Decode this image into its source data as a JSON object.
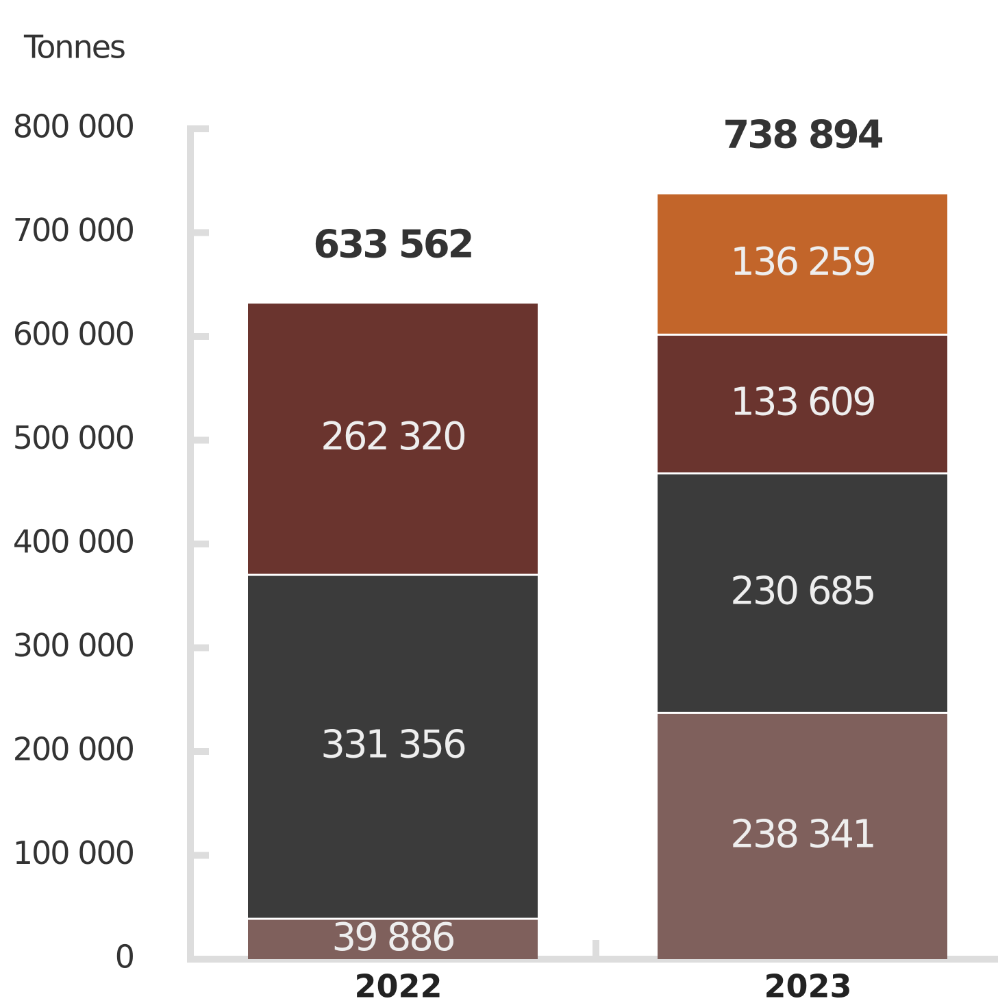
{
  "chart_data": {
    "type": "stacked_bar",
    "y_label": "Tonnes",
    "categories": [
      "2022",
      "2023"
    ],
    "series": [
      {
        "color": "#7f605c",
        "values": [
          39886,
          238341
        ],
        "value_labels": [
          "39 886",
          "238 341"
        ]
      },
      {
        "color": "#3b3b3b",
        "values": [
          331356,
          230685
        ],
        "value_labels": [
          "331 356",
          "230 685"
        ]
      },
      {
        "color": "#6a342e",
        "values": [
          262320,
          133609
        ],
        "value_labels": [
          "262 320",
          "133 609"
        ]
      },
      {
        "color": "#c2652a",
        "values": [
          null,
          136259
        ],
        "value_labels": [
          null,
          "136 259"
        ]
      }
    ],
    "totals": [
      633562,
      738894
    ],
    "total_labels": [
      "633 562",
      "738 894"
    ],
    "ylim": [
      0,
      800000
    ],
    "yticks": [
      0,
      {
        "value": 100000,
        "label": "100 000"
      },
      {
        "value": 200000,
        "label": "200 000"
      },
      {
        "value": 300000,
        "label": "300 000"
      },
      {
        "value": 400000,
        "label": "400 000"
      },
      {
        "value": 500000,
        "label": "500 000"
      },
      {
        "value": 600000,
        "label": "600 000"
      },
      {
        "value": 700000,
        "label": "700 000"
      },
      {
        "value": 800000,
        "label": "800 000"
      }
    ]
  }
}
